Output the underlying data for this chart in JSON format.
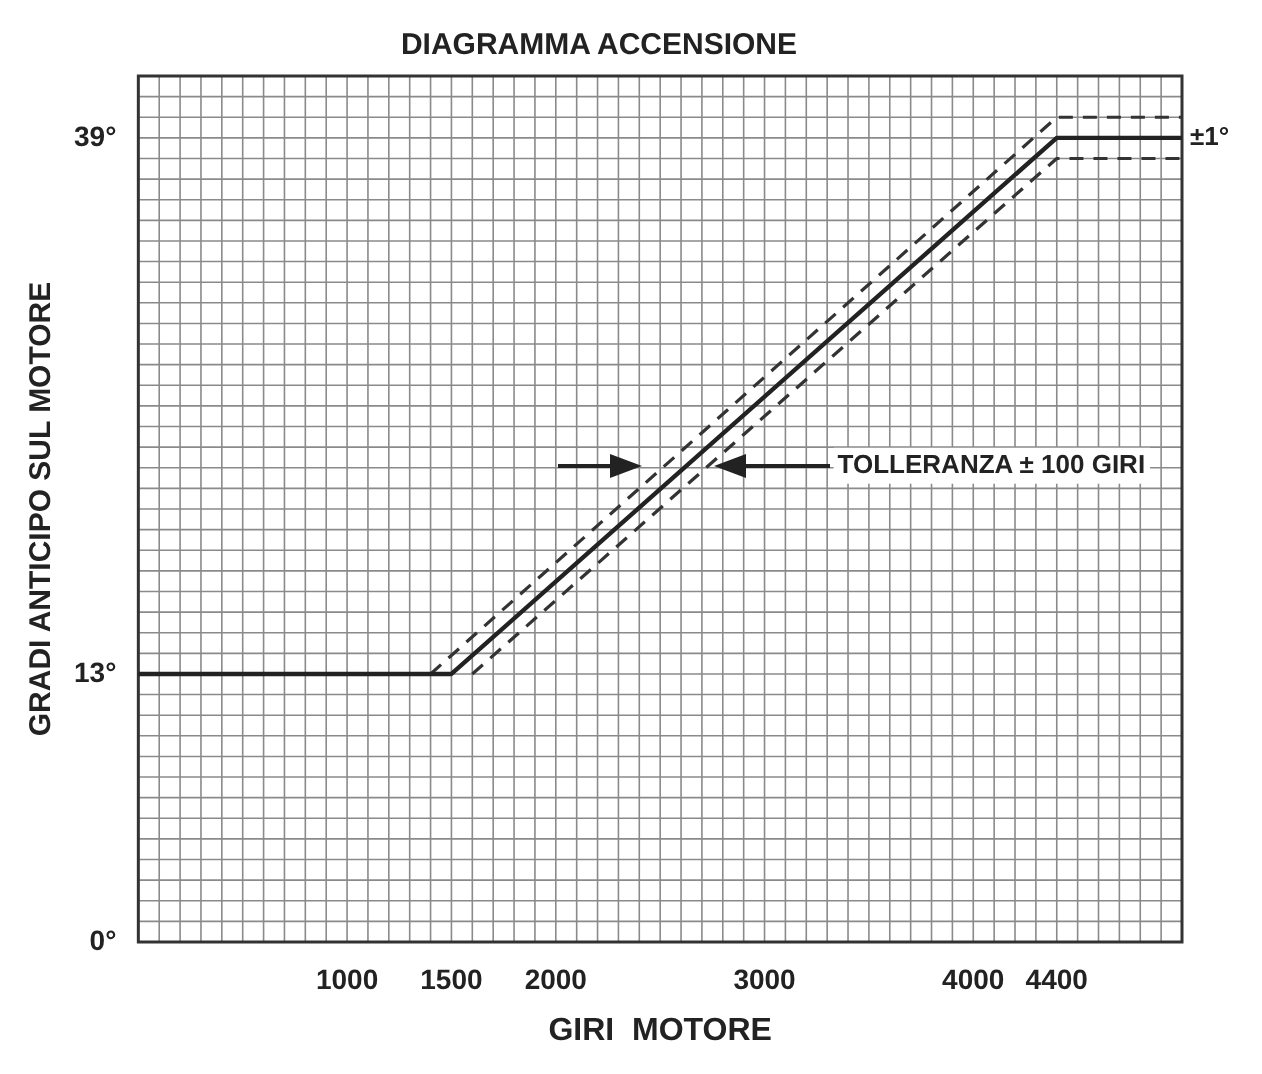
{
  "chart_data": {
    "type": "line",
    "title": "DIAGRAMMA ACCENSIONE",
    "xlabel": "GIRI  MOTORE",
    "ylabel": "GRADI ANTICIPO SUL MOTORE",
    "series": [
      {
        "color": "#222222",
        "line_style": "solid",
        "x": [
          0,
          1500,
          4400,
          5000
        ],
        "values": [
          13,
          13,
          39,
          39
        ]
      },
      {
        "color": "#333333",
        "line_style": "dashed",
        "x": [
          1400,
          4400,
          5000
        ],
        "values": [
          13,
          40,
          40
        ]
      },
      {
        "color": "#333333",
        "line_style": "dashed",
        "x": [
          1600,
          4400,
          5000
        ],
        "values": [
          13,
          38,
          38
        ]
      }
    ],
    "xlim": [
      0,
      5000
    ],
    "xticks": [
      1000,
      1500,
      2000,
      3000,
      4000,
      4400
    ],
    "ylim": [
      0,
      42
    ],
    "yticks": [
      {
        "value": 0,
        "label": "0°"
      },
      {
        "value": 13,
        "label": "13°"
      },
      {
        "value": 39,
        "label": "39°"
      }
    ],
    "annotations": [
      "TOLLERANZA ± 100 GIRI",
      {
        "text": "±1°",
        "x": 5000,
        "y": 39
      }
    ],
    "grid": true,
    "legend": false,
    "marker": "none"
  }
}
